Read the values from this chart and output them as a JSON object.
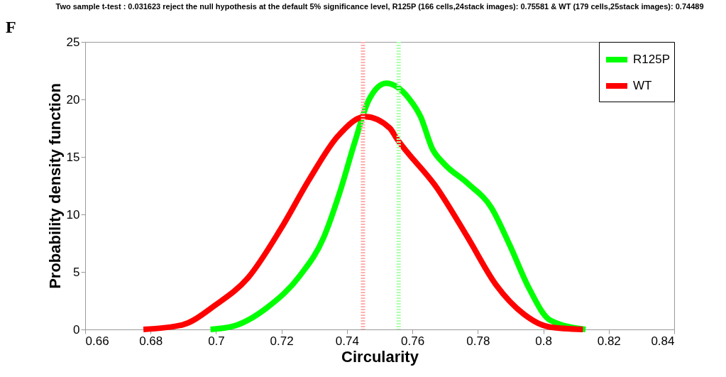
{
  "chart_data": {
    "type": "line",
    "title": "Two sample t-test : 0.031623 reject the null hypothesis at the default 5% significance level, R125P (166 cells,24stack images): 0.75581 & WT (179 cells,25stack images): 0.74489",
    "annotations": [
      "F"
    ],
    "xlabel": "Circularity",
    "ylabel": "Probability density function",
    "series": [
      {
        "name": "R125P",
        "color": "#00ff00",
        "x": [
          0.6983,
          0.7055,
          0.7156,
          0.7257,
          0.7329,
          0.7379,
          0.7423,
          0.7466,
          0.752,
          0.7589,
          0.7625,
          0.7661,
          0.7697,
          0.7769,
          0.7841,
          0.7898,
          0.7956,
          0.8021,
          0.8129
        ],
        "values": [
          0,
          0.3,
          1.9,
          4.7,
          8.0,
          12.0,
          16.2,
          19.9,
          21.4,
          20.1,
          18.5,
          15.7,
          14.4,
          12.7,
          10.6,
          7.3,
          3.6,
          0.8,
          0
        ]
      },
      {
        "name": "WT",
        "color": "#ff0000",
        "x": [
          0.6778,
          0.6897,
          0.6997,
          0.7098,
          0.7199,
          0.7286,
          0.7372,
          0.7455,
          0.7531,
          0.7552,
          0.7675,
          0.7769,
          0.7855,
          0.7942,
          0.8021,
          0.8121
        ],
        "values": [
          0,
          0.4,
          2.1,
          4.5,
          8.8,
          13.1,
          16.8,
          18.5,
          17.5,
          16.6,
          12.3,
          8.0,
          3.9,
          1.3,
          0.2,
          0
        ]
      }
    ],
    "ref_lines": [
      {
        "axis": "x",
        "value": 0.7449,
        "color": "#ffb0b0",
        "line_style": "dotted"
      },
      {
        "axis": "x",
        "value": 0.7558,
        "color": "#b0ffb0",
        "line_style": "dotted"
      }
    ],
    "xlim": [
      0.66,
      0.84
    ],
    "xticks": [
      0.66,
      0.68,
      0.7,
      0.72,
      0.74,
      0.76,
      0.78,
      0.8,
      0.82,
      0.84
    ],
    "ylim": [
      0,
      25
    ],
    "yticks": [
      0,
      5,
      10,
      15,
      20,
      25
    ],
    "legend": "top right",
    "grid": false,
    "marker": "none",
    "line_style": "solid"
  }
}
